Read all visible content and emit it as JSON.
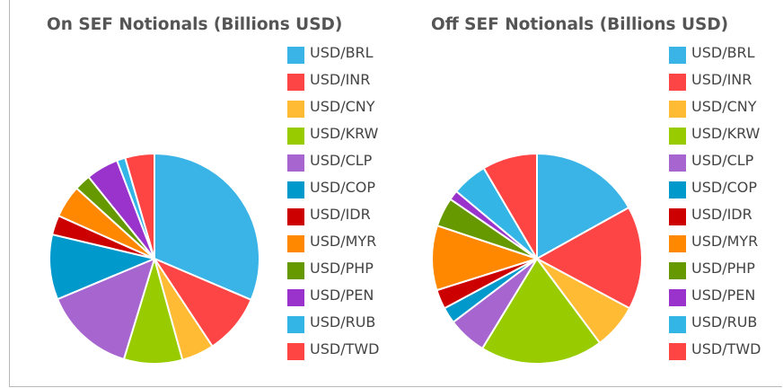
{
  "chart_data": [
    {
      "type": "pie",
      "title": "On SEF Notionals (Billions USD)",
      "categories": [
        "USD/BRL",
        "USD/INR",
        "USD/CNY",
        "USD/KRW",
        "USD/CLP",
        "USD/COP",
        "USD/IDR",
        "USD/MYR",
        "USD/PHP",
        "USD/PEN",
        "USD/RUB",
        "USD/TWD"
      ],
      "values": [
        31.4,
        9.3,
        5.0,
        9.0,
        14.0,
        10.0,
        3.0,
        5.0,
        2.5,
        5.0,
        1.3,
        4.5
      ],
      "legend_position": "right"
    },
    {
      "type": "pie",
      "title": "Off SEF Notionals (Billions USD)",
      "categories": [
        "USD/BRL",
        "USD/INR",
        "USD/CNY",
        "USD/KRW",
        "USD/CLP",
        "USD/COP",
        "USD/IDR",
        "USD/MYR",
        "USD/PHP",
        "USD/PEN",
        "USD/RUB",
        "USD/TWD"
      ],
      "values": [
        17.0,
        16.0,
        7.0,
        19.0,
        6.0,
        2.5,
        3.0,
        10.0,
        4.5,
        1.5,
        5.5,
        8.5
      ],
      "legend_position": "right"
    }
  ],
  "colors": [
    "#3ab4e6",
    "#fe4545",
    "#ffbb33",
    "#99cc00",
    "#a766cf",
    "#0099cc",
    "#cc0000",
    "#ff8800",
    "#669900",
    "#9933cc",
    "#33b5e5",
    "#ff4444"
  ]
}
